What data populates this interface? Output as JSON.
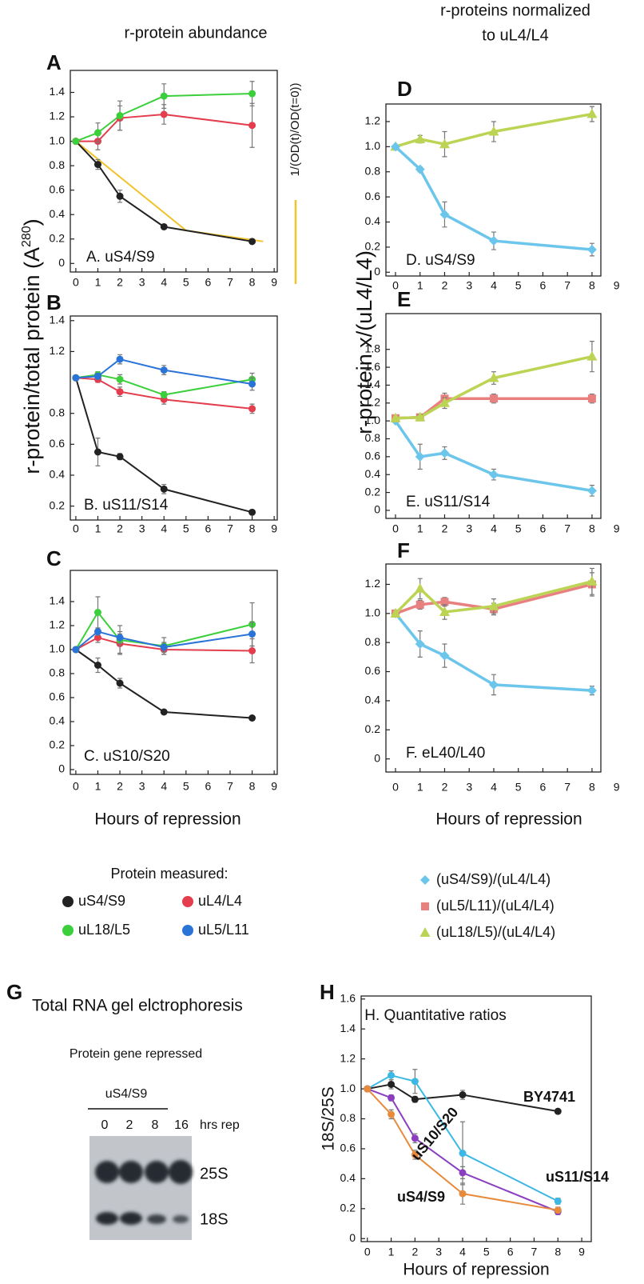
{
  "figure": {
    "left_heading": "r-protein abundance",
    "right_heading": [
      "r-proteins normalized",
      "to uL4/L4"
    ],
    "left_y_label": [
      "r-protein/total protein (A",
      "280",
      ")"
    ],
    "right_y_label": "r-protein x/(uL4/L4)",
    "left_x_label": "Hours of repression",
    "right_x_label": "Hours of repression",
    "legend_title": "Protein measured:"
  },
  "gel": {
    "panel": "G",
    "title": "Total RNA gel elctrophoresis",
    "subtitle": "Protein gene repressed",
    "group": "uS4/S9",
    "lanes": [
      "0",
      "2",
      "8",
      "16"
    ],
    "lane_unit": "hrs rep",
    "bands": [
      "25S",
      "18S"
    ]
  },
  "chart_data": [
    {
      "panel": "A",
      "title": "A. uS4/S9",
      "type": "line",
      "x": [
        0,
        1,
        2,
        4,
        8
      ],
      "xlim": [
        -0.25,
        9.14
      ],
      "xticks": [
        0,
        1,
        2,
        3,
        4,
        5,
        6,
        7,
        8,
        9
      ],
      "ylim": [
        -0.07,
        1.58
      ],
      "yticks": [
        0,
        0.2,
        0.4,
        0.6,
        0.8,
        {
          "value": 1,
          "label": "1.0"
        },
        1.2,
        1.4
      ],
      "series": [
        {
          "color": "#f2c32c",
          "marker": "none",
          "name": "1/(OD(t)/OD(t=0))",
          "x": [
            0,
            5,
            8.5
          ],
          "values": [
            1,
            0.27,
            0.18
          ]
        },
        {
          "color": "#222222",
          "marker": "circle",
          "values": [
            1,
            0.81,
            0.55,
            0.3,
            0.18
          ],
          "errors": [
            null,
            0.04,
            0.05,
            0.02,
            0.01
          ]
        },
        {
          "color": "#e33d4e",
          "marker": "circle",
          "values": [
            1,
            1,
            1.19,
            1.22,
            1.13
          ],
          "errors": [
            null,
            0.07,
            0.1,
            0.08,
            0.18
          ]
        },
        {
          "color": "#3ccf3c",
          "marker": "circle",
          "values": [
            1,
            1.07,
            1.21,
            1.37,
            1.39
          ],
          "errors": [
            null,
            0.08,
            0.12,
            0.1,
            0.1
          ]
        }
      ]
    },
    {
      "panel": "B",
      "title": "B. uS11/S14",
      "type": "line",
      "x": [
        0,
        1,
        2,
        4,
        8
      ],
      "xlim": [
        -0.25,
        9.14
      ],
      "xticks": [
        0,
        1,
        2,
        3,
        4,
        5,
        6,
        7,
        8,
        9
      ],
      "ylim": [
        0.11,
        1.43
      ],
      "yticks": [
        0.2,
        0.4,
        0.6,
        0.8,
        1.2,
        1.4
      ],
      "series": [
        {
          "name": "uS4/S9",
          "color": "#222222",
          "marker": "circle",
          "values": [
            1.03,
            0.55,
            0.52,
            0.31,
            0.16
          ],
          "errors": [
            null,
            0.09,
            0.02,
            0.03,
            0.01
          ]
        },
        {
          "name": "uL4/L4",
          "color": "#e33d4e",
          "marker": "circle",
          "values": [
            1.03,
            1.02,
            0.94,
            0.89,
            0.83
          ],
          "errors": [
            null,
            0.02,
            0.03,
            0.03,
            0.03
          ]
        },
        {
          "name": "uL18/L5",
          "color": "#3ccf3c",
          "marker": "circle",
          "values": [
            1.03,
            1.05,
            1.02,
            0.92,
            1.02
          ],
          "errors": [
            null,
            0.02,
            0.03,
            0.02,
            0.04
          ]
        },
        {
          "name": "uL5/L11",
          "color": "#2a74d8",
          "marker": "circle",
          "values": [
            1.03,
            1.04,
            1.15,
            1.08,
            0.99
          ],
          "errors": [
            null,
            0.02,
            0.03,
            0.03,
            0.04
          ]
        }
      ]
    },
    {
      "panel": "C",
      "title": "C. uS10/S20",
      "type": "line",
      "x": [
        0,
        1,
        2,
        4,
        8
      ],
      "xlim": [
        -0.25,
        9.14
      ],
      "xticks": [
        0,
        1,
        2,
        3,
        4,
        5,
        6,
        7,
        8,
        9
      ],
      "ylim": [
        -0.04,
        1.66
      ],
      "yticks": [
        0,
        0.2,
        0.4,
        0.6,
        0.8,
        {
          "value": 1,
          "label": "1.0"
        },
        1.2,
        1.4
      ],
      "series": [
        {
          "color": "#222222",
          "marker": "circle",
          "values": [
            1,
            0.87,
            0.72,
            0.48,
            0.43
          ],
          "errors": [
            null,
            0.06,
            0.04,
            0.01,
            0.01
          ]
        },
        {
          "color": "#e33d4e",
          "marker": "circle",
          "values": [
            1,
            1.1,
            1.05,
            1,
            0.99
          ],
          "errors": [
            null,
            0.04,
            0.08,
            0.04,
            0.1
          ]
        },
        {
          "color": "#3ccf3c",
          "marker": "circle",
          "values": [
            1,
            1.31,
            1.08,
            1.03,
            1.21
          ],
          "errors": [
            null,
            0.13,
            0.12,
            0.07,
            0.18
          ]
        },
        {
          "color": "#2a74d8",
          "marker": "circle",
          "values": [
            1,
            1.15,
            1.1,
            1.02,
            1.13
          ],
          "errors": [
            null,
            0.03,
            0.05,
            0.04,
            0.1
          ]
        }
      ]
    },
    {
      "panel": "D",
      "title": "D. uS4/S9",
      "type": "line",
      "x": [
        0,
        1,
        2,
        4,
        8
      ],
      "xlim": [
        -0.39,
        8.36
      ],
      "xticks": [
        0,
        1,
        2,
        3,
        4,
        5,
        6,
        7,
        8,
        9
      ],
      "ylim": [
        -0.03,
        1.34
      ],
      "yticks": [
        0,
        0.2,
        0.4,
        0.6,
        0.8,
        {
          "value": 1,
          "label": "1.0"
        },
        1.2
      ],
      "series": [
        {
          "color": "#bcd454",
          "marker": "triangle",
          "values": [
            1,
            1.06,
            1.02,
            1.12,
            1.26
          ],
          "errors": [
            null,
            0.03,
            0.1,
            0.08,
            0.06
          ]
        },
        {
          "color": "#6cc6ec",
          "marker": "diamond",
          "values": [
            1,
            0.82,
            0.46,
            0.25,
            0.18
          ],
          "errors": [
            null,
            0.02,
            0.1,
            0.07,
            0.05
          ]
        }
      ]
    },
    {
      "panel": "E",
      "title": "E. uS11/S14",
      "type": "line",
      "x": [
        0,
        1,
        2,
        4,
        8
      ],
      "xlim": [
        -0.39,
        8.36
      ],
      "xticks": [
        0,
        1,
        2,
        3,
        4,
        5,
        6,
        7,
        8,
        9
      ],
      "ylim": [
        -0.09,
        2.2
      ],
      "yticks": [
        0,
        0.2,
        0.4,
        0.6,
        0.8,
        {
          "value": 1,
          "label": "1.0"
        },
        1.2,
        1.4,
        1.6,
        1.8
      ],
      "series": [
        {
          "name": "(uS4/S9)/(uL4/L4)",
          "color": "#6cc6ec",
          "marker": "diamond",
          "values": [
            1,
            0.6,
            0.64,
            0.4,
            0.22
          ],
          "errors": [
            null,
            0.14,
            0.07,
            0.06,
            0.06
          ]
        },
        {
          "name": "(uL5/L11)/(uL4/L4)",
          "color": "#e98080",
          "marker": "square",
          "values": [
            1.03,
            1.04,
            1.25,
            1.25,
            1.25
          ],
          "errors": [
            null,
            0.03,
            0.06,
            0.05,
            0.05
          ]
        },
        {
          "name": "(uL18/L5)/(uL4/L4)",
          "color": "#bcd454",
          "marker": "triangle",
          "values": [
            1.03,
            1.04,
            1.2,
            1.48,
            1.72
          ],
          "errors": [
            null,
            0.03,
            0.06,
            0.07,
            0.17
          ]
        }
      ]
    },
    {
      "panel": "F",
      "title": "F. eL40/L40",
      "type": "line",
      "x": [
        0,
        1,
        2,
        4,
        8
      ],
      "xlim": [
        -0.39,
        8.36
      ],
      "xticks": [
        0,
        1,
        2,
        3,
        4,
        5,
        6,
        7,
        8,
        9
      ],
      "ylim": [
        -0.09,
        1.34
      ],
      "yticks": [
        0,
        0.2,
        0.4,
        0.6,
        0.8,
        {
          "value": 1,
          "label": "1.0"
        },
        1.2
      ],
      "series": [
        {
          "color": "#6cc6ec",
          "marker": "diamond",
          "values": [
            1,
            0.79,
            0.71,
            0.51,
            0.47
          ],
          "errors": [
            null,
            0.09,
            0.08,
            0.07,
            0.03
          ]
        },
        {
          "color": "#e98080",
          "marker": "square",
          "values": [
            1,
            1.06,
            1.08,
            1.03,
            1.2
          ],
          "errors": [
            null,
            0.03,
            0.03,
            0.04,
            0.08
          ]
        },
        {
          "color": "#bcd454",
          "marker": "triangle",
          "values": [
            1,
            1.17,
            1.01,
            1.05,
            1.22
          ],
          "errors": [
            null,
            0.07,
            0.05,
            0.05,
            0.09
          ]
        }
      ]
    },
    {
      "panel": "H",
      "title": "H. Quantitative ratios",
      "type": "line",
      "x_label": "Hours of repression",
      "y_label": "18S/25S",
      "x": [
        0,
        1,
        2,
        4,
        8
      ],
      "xlim": [
        -0.26,
        9.4
      ],
      "xticks": [
        0,
        1,
        2,
        3,
        4,
        5,
        6,
        7,
        8,
        9
      ],
      "ylim": [
        -0.02,
        1.62
      ],
      "yticks": [
        0,
        0.2,
        0.4,
        0.6,
        0.8,
        {
          "value": 1,
          "label": "1.0"
        },
        1.2,
        1.4,
        1.6
      ],
      "series": [
        {
          "name": "BY4741",
          "color": "#222222",
          "marker": "circle",
          "values": [
            1,
            1.03,
            0.93,
            0.96,
            0.85
          ],
          "errors": [
            null,
            0.03,
            0.02,
            0.03,
            null
          ]
        },
        {
          "name": "uS11/S14",
          "color": "#3cb8e4",
          "marker": "circle",
          "values": [
            1,
            1.09,
            1.05,
            0.57,
            0.25
          ],
          "errors": [
            null,
            0.03,
            0.08,
            0.21,
            0.02
          ]
        },
        {
          "name": "uS10/S20",
          "color": "#8b3fc0",
          "label_color": "#8b2a10",
          "marker": "circle",
          "values": [
            1,
            0.94,
            0.67,
            0.44,
            0.18
          ],
          "errors": [
            null,
            0.02,
            0.03,
            0.04,
            0.02
          ]
        },
        {
          "name": "uS4/S9",
          "color": "#e88a3c",
          "marker": "circle",
          "values": [
            1,
            0.83,
            0.56,
            0.3,
            0.19
          ],
          "errors": [
            null,
            0.03,
            0.03,
            0.07,
            0.02
          ]
        }
      ]
    }
  ]
}
